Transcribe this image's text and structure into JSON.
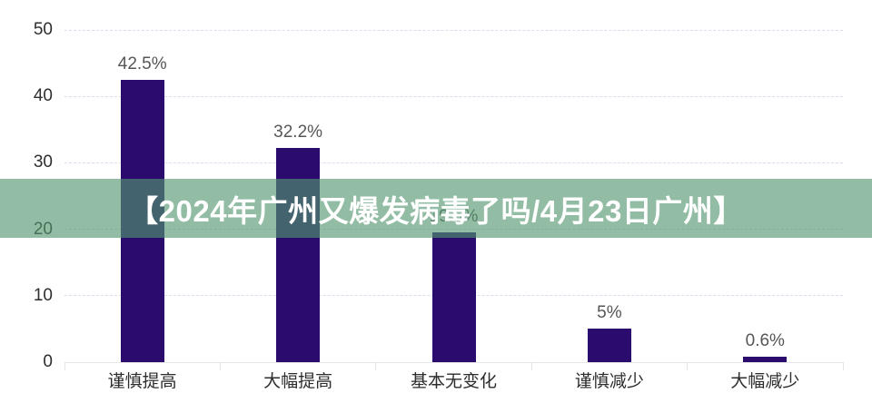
{
  "banner": {
    "text": "【2024年广州又爆发病毒了吗/4月23日广州】",
    "bg_color": "#52966F",
    "bg_opacity": 0.63,
    "text_color": "#ffffff"
  },
  "chart_data": {
    "type": "bar",
    "categories": [
      "谨慎提高",
      "大幅提高",
      "基本无变化",
      "谨慎减少",
      "大幅减少"
    ],
    "values": [
      42.5,
      32.2,
      19.5,
      5,
      0.6
    ],
    "value_labels": [
      "42.5%",
      "32.2%",
      "19.5%",
      "5%",
      "0.6%"
    ],
    "title": "",
    "xlabel": "",
    "ylabel": "",
    "ylim": [
      0,
      50
    ],
    "yticks": [
      0,
      10,
      20,
      30,
      40,
      50
    ],
    "ytick_labels": [
      "0",
      "10",
      "20",
      "30",
      "40",
      "50"
    ],
    "grid": "horizontal-dashed",
    "legend": "none",
    "bar_color": "#2B0C6E",
    "grid_color": "#d9ddee",
    "value_label_color": "#565656",
    "axis_text_color": "#2d2d2d"
  }
}
